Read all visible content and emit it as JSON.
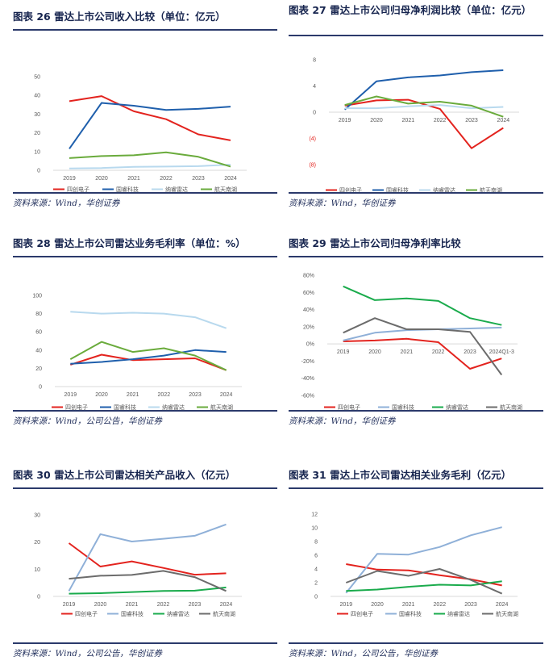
{
  "colors": {
    "series": [
      "#e3231e",
      "#1f5fac",
      "#b8d9ee",
      "#6aab3c"
    ],
    "series_p28": [
      "#e3231e",
      "#1f5fac",
      "#b8d9ee",
      "#6aab3c"
    ],
    "series_alt": [
      "#e3231e",
      "#8fb0d8",
      "#1aab4c",
      "#6c6c6c"
    ],
    "axis_text": "#595959",
    "rule": "#2b3a6b"
  },
  "chart_data": [
    {
      "id": "c26",
      "title": "图表 26   雷达上市公司收入比较（单位：亿元）",
      "source": "资料来源：Wind，华创证券",
      "type": "line",
      "categories": [
        "2019",
        "2020",
        "2021",
        "2022",
        "2023",
        "2024"
      ],
      "ylim": [
        0,
        50
      ],
      "yticks": [
        "0",
        "10",
        "20",
        "30",
        "40",
        "50"
      ],
      "ytick_values": [
        0,
        10,
        20,
        30,
        40,
        50
      ],
      "legend_position": "bottom-left",
      "series": [
        {
          "name": "四创电子",
          "values": [
            36.9,
            39.6,
            31.5,
            27.3,
            19.2,
            16.0
          ]
        },
        {
          "name": "国睿科技",
          "values": [
            11.5,
            36.0,
            34.5,
            32.2,
            32.8,
            34.0
          ]
        },
        {
          "name": "纳睿雷达",
          "values": [
            1.0,
            1.2,
            1.8,
            2.0,
            2.2,
            3.0
          ]
        },
        {
          "name": "航天南湖",
          "values": [
            6.5,
            7.6,
            8.0,
            9.6,
            7.2,
            2.0
          ]
        }
      ]
    },
    {
      "id": "c27",
      "title": "图表 27   雷达上市公司归母净利润比较（单位：亿元）",
      "source": "资料来源：Wind，华创证券",
      "type": "line",
      "categories": [
        "2019",
        "2020",
        "2021",
        "2022",
        "2023",
        "2024"
      ],
      "ylim": [
        -8,
        8
      ],
      "yticks": [
        "(8)",
        "(4)",
        "0",
        "4",
        "8"
      ],
      "ytick_values": [
        -8,
        -4,
        0,
        4,
        8
      ],
      "legend_position": "bottom-left",
      "series": [
        {
          "name": "四创电子",
          "values": [
            1.0,
            1.8,
            1.9,
            0.5,
            -5.5,
            -2.4
          ]
        },
        {
          "name": "国睿科技",
          "values": [
            0.4,
            4.7,
            5.3,
            5.6,
            6.1,
            6.4
          ]
        },
        {
          "name": "纳睿雷达",
          "values": [
            0.6,
            0.6,
            0.9,
            1.1,
            0.6,
            0.8
          ]
        },
        {
          "name": "航天南湖",
          "values": [
            1.1,
            2.4,
            1.3,
            1.6,
            1.0,
            -0.7
          ]
        }
      ]
    },
    {
      "id": "c28",
      "title": "图表 28   雷达上市公司雷达业务毛利率（单位：%）",
      "source": "资料来源：Wind，公司公告，华创证券",
      "type": "line",
      "categories": [
        "2019",
        "2020",
        "2021",
        "2022",
        "2023",
        "2024"
      ],
      "ylim": [
        0,
        100
      ],
      "yticks": [
        "0",
        "20",
        "40",
        "60",
        "80",
        "100"
      ],
      "ytick_values": [
        0,
        20,
        40,
        60,
        80,
        100
      ],
      "legend_position": "bottom-left",
      "series": [
        {
          "name": "四创电子",
          "values": [
            24,
            35,
            29,
            30,
            31,
            18
          ]
        },
        {
          "name": "国睿科技",
          "values": [
            25,
            27,
            30,
            34,
            40,
            38
          ]
        },
        {
          "name": "纳睿雷达",
          "values": [
            82,
            80,
            81,
            80,
            76,
            64
          ]
        },
        {
          "name": "航天南湖",
          "values": [
            30,
            49,
            38,
            42,
            34,
            18
          ]
        }
      ]
    },
    {
      "id": "c29",
      "title": "图表 29   雷达上市公司归母净利率比较",
      "source": "资料来源：Wind，华创证券",
      "type": "line",
      "categories": [
        "2019",
        "2020",
        "2021",
        "2022",
        "2023",
        "2024Q1-3"
      ],
      "ylim": [
        -60,
        80
      ],
      "yticks": [
        "-60%",
        "-40%",
        "-20%",
        "0%",
        "20%",
        "40%",
        "60%",
        "80%"
      ],
      "ytick_values": [
        -60,
        -40,
        -20,
        0,
        20,
        40,
        60,
        80
      ],
      "legend_position": "bottom-left",
      "series": [
        {
          "name": "四创电子",
          "values": [
            3,
            4,
            6,
            2,
            -29,
            -17
          ]
        },
        {
          "name": "国睿科技",
          "values": [
            4,
            13,
            16,
            17,
            18,
            19
          ]
        },
        {
          "name": "纳睿雷达",
          "values": [
            67,
            51,
            53,
            50,
            30,
            22
          ]
        },
        {
          "name": "航天南湖",
          "values": [
            13,
            30,
            17,
            17,
            14,
            -36
          ]
        }
      ]
    },
    {
      "id": "c30",
      "title": "图表 30   雷达上市公司雷达相关产品收入（亿元）",
      "source": "资料来源：Wind，公司公告，华创证券",
      "type": "line",
      "categories": [
        "2019",
        "2020",
        "2021",
        "2022",
        "2023",
        "2024"
      ],
      "ylim": [
        0,
        30
      ],
      "yticks": [
        "0",
        "10",
        "20",
        "30"
      ],
      "ytick_values": [
        0,
        10,
        20,
        30
      ],
      "legend_position": "bottom-left",
      "series": [
        {
          "name": "四创电子",
          "values": [
            19.6,
            11.0,
            12.9,
            10.5,
            8.0,
            8.5
          ]
        },
        {
          "name": "国睿科技",
          "values": [
            2.0,
            22.9,
            20.2,
            21.2,
            22.3,
            26.5
          ]
        },
        {
          "name": "纳睿雷达",
          "values": [
            1.0,
            1.2,
            1.6,
            2.0,
            2.1,
            3.3
          ]
        },
        {
          "name": "航天南湖",
          "values": [
            6.5,
            7.6,
            7.9,
            9.4,
            7.1,
            2.0
          ]
        }
      ]
    },
    {
      "id": "c31",
      "title": "图表 31   雷达上市公司雷达相关业务毛利（亿元）",
      "source": "资料来源：Wind，公司公告，华创证券",
      "type": "line",
      "categories": [
        "2019",
        "2020",
        "2021",
        "2022",
        "2023",
        "2024"
      ],
      "ylim": [
        0,
        12
      ],
      "yticks": [
        "0",
        "2",
        "4",
        "6",
        "8",
        "10",
        "12"
      ],
      "ytick_values": [
        0,
        2,
        4,
        6,
        8,
        10,
        12
      ],
      "legend_position": "bottom-left",
      "series": [
        {
          "name": "四创电子",
          "values": [
            4.7,
            3.9,
            3.8,
            3.1,
            2.5,
            1.6
          ]
        },
        {
          "name": "国睿科技",
          "values": [
            0.5,
            6.2,
            6.1,
            7.2,
            8.9,
            10.1
          ]
        },
        {
          "name": "纳睿雷达",
          "values": [
            0.8,
            1.0,
            1.4,
            1.7,
            1.6,
            2.2
          ]
        },
        {
          "name": "航天南湖",
          "values": [
            2.0,
            3.7,
            3.0,
            4.0,
            2.4,
            0.4
          ]
        }
      ]
    }
  ]
}
